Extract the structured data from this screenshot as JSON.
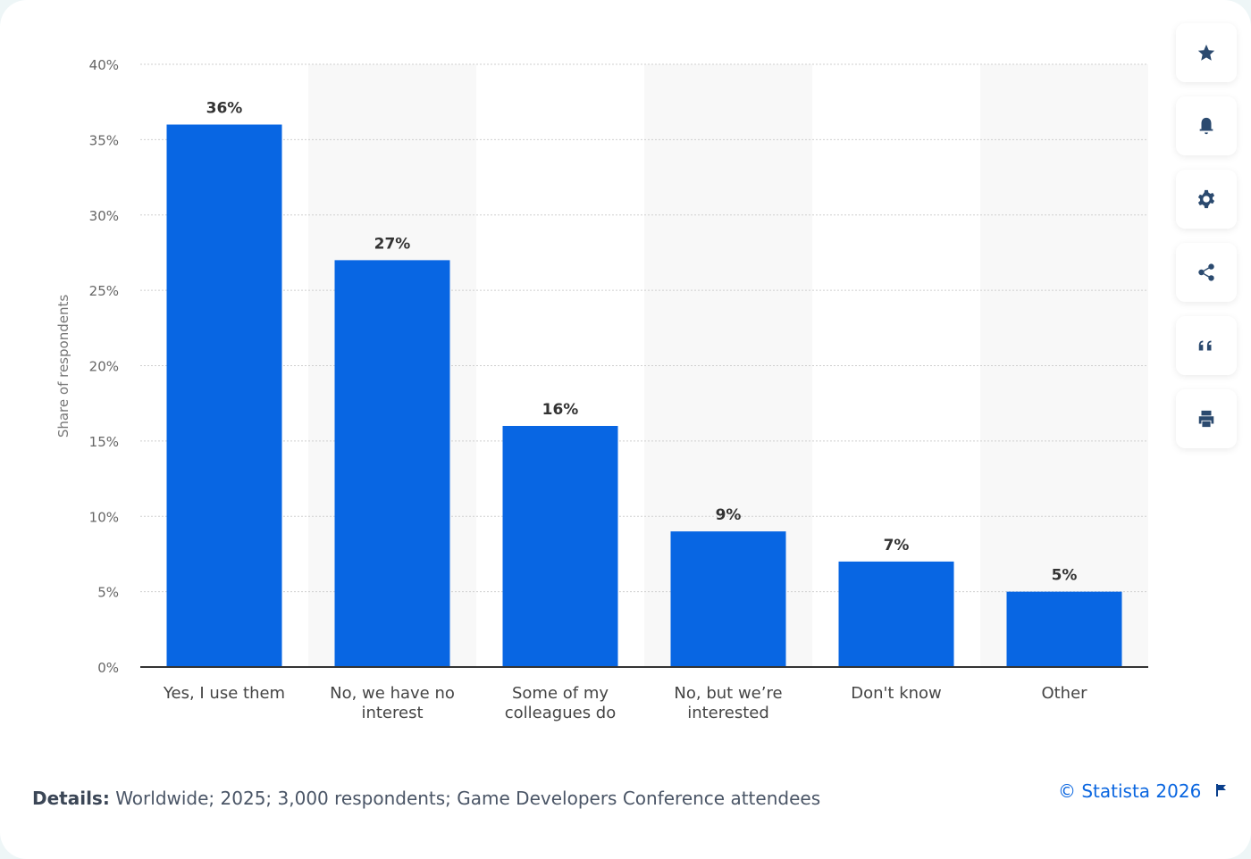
{
  "chart_data": {
    "type": "bar",
    "categories": [
      "Yes, I use them",
      "No, we have no interest",
      "Some of my colleagues do",
      "No, but we're interested",
      "Don't know",
      "Other"
    ],
    "category_lines": [
      [
        "Yes, I use them"
      ],
      [
        "No, we have no",
        "interest"
      ],
      [
        "Some of my",
        "colleagues do"
      ],
      [
        "No, but we’re",
        "interested"
      ],
      [
        "Don't know"
      ],
      [
        "Other"
      ]
    ],
    "values": [
      36,
      27,
      16,
      9,
      7,
      5
    ],
    "data_labels": [
      "36%",
      "27%",
      "16%",
      "9%",
      "7%",
      "5%"
    ],
    "ylabel": "Share of respondents",
    "ylim": [
      0,
      40
    ],
    "yticks": [
      "0%",
      "5%",
      "10%",
      "15%",
      "20%",
      "25%",
      "30%",
      "35%",
      "40%"
    ],
    "grid": true,
    "bar_color": "#0866e3"
  },
  "sidebar": {
    "icons": [
      "star-icon",
      "bell-icon",
      "gear-icon",
      "share-icon",
      "quote-icon",
      "print-icon"
    ]
  },
  "footer": {
    "details_label": "Details:",
    "details_text": " Worldwide; 2025; 3,000 respondents; Game Developers Conference attendees",
    "copyright": "© Statista 2026",
    "flag_icon": "flag-icon"
  }
}
